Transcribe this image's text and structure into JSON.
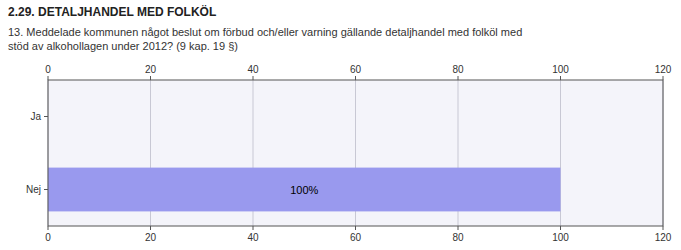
{
  "chart_data": {
    "type": "bar",
    "orientation": "horizontal",
    "title": "2.29. DETALJHANDEL MED FOLKÖL",
    "subtitle": "13. Meddelade kommunen något beslut om förbud och/eller varning gällande detaljhandel med folköl med\nstöd av alkohollagen under 2012? (9 kap. 19 §)",
    "categories": [
      "Nej",
      "Ja"
    ],
    "values": [
      100,
      0
    ],
    "value_labels": [
      "100%",
      null
    ],
    "data_labels": true,
    "color": "#9999ee",
    "xlim": [
      0,
      120
    ],
    "xticks": [
      0,
      20,
      40,
      60,
      80,
      100,
      120
    ],
    "grid": true
  }
}
